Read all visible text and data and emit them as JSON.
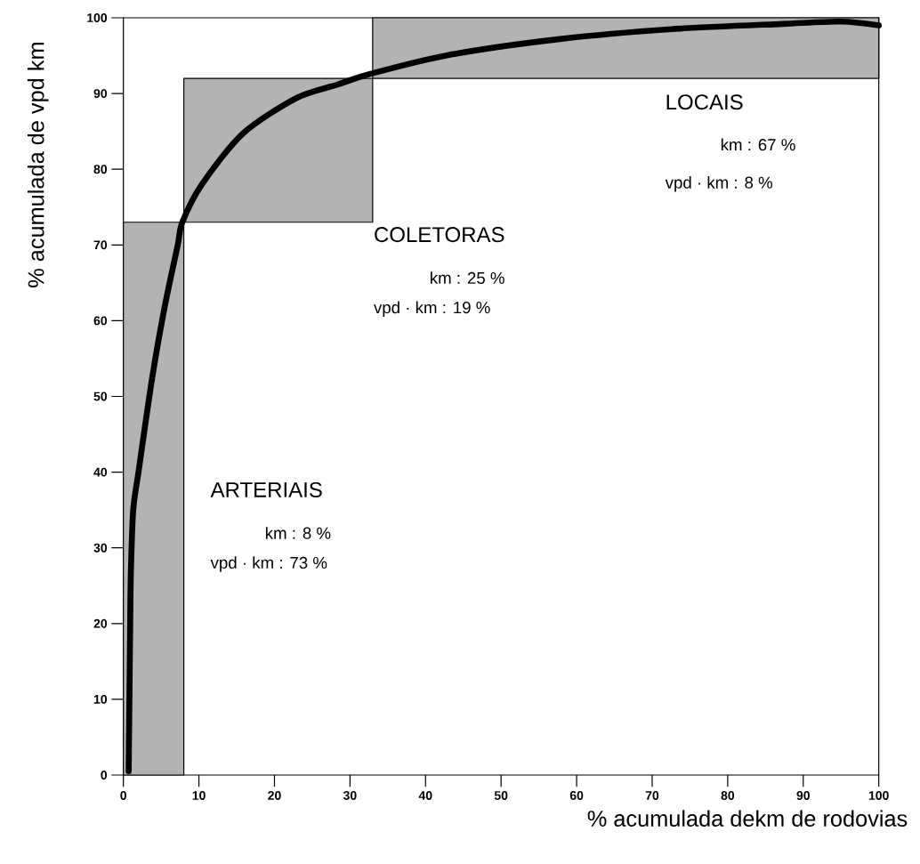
{
  "chart_data": {
    "type": "line",
    "xlabel": "% acumulada dekm de rodovias",
    "ylabel": "% acumulada de vpd km",
    "xlim": [
      0,
      100
    ],
    "ylim": [
      0,
      100
    ],
    "xticks": [
      0,
      10,
      20,
      30,
      40,
      50,
      60,
      70,
      80,
      90,
      100
    ],
    "yticks": [
      0,
      10,
      20,
      30,
      40,
      50,
      60,
      70,
      80,
      90,
      100
    ],
    "grid": false,
    "series": [
      {
        "type": "histogram",
        "bins": [
          0,
          8,
          33,
          100
        ],
        "values": [
          73,
          19,
          8
        ],
        "base": [
          0,
          73,
          92
        ],
        "color": "#b3b3b3"
      },
      {
        "color": "#000000",
        "x": [
          0.7,
          0.8,
          0.9,
          1.0,
          1.3,
          2.0,
          2.8,
          3.9,
          5.5,
          7.2,
          7.8,
          10.4,
          15.8,
          22.9,
          28.4,
          32.7,
          43.1,
          57.8,
          72.6,
          87.3,
          95,
          100
        ],
        "values": [
          0.5,
          10,
          20,
          27,
          35,
          40,
          45.6,
          53,
          62,
          70,
          73,
          78,
          84.7,
          89.4,
          91.2,
          92.6,
          95.1,
          97.2,
          98.5,
          99.2,
          99.5,
          99
        ]
      }
    ],
    "annotations": [
      "ARTERIAIS",
      "km :   8 %",
      "vpd · km : 73 %",
      "COLETORAS",
      "km : 25 %",
      "vpd · km : 19 %",
      "LOCAIS",
      "km : 67 %",
      "vpd · km :  8 %"
    ]
  }
}
